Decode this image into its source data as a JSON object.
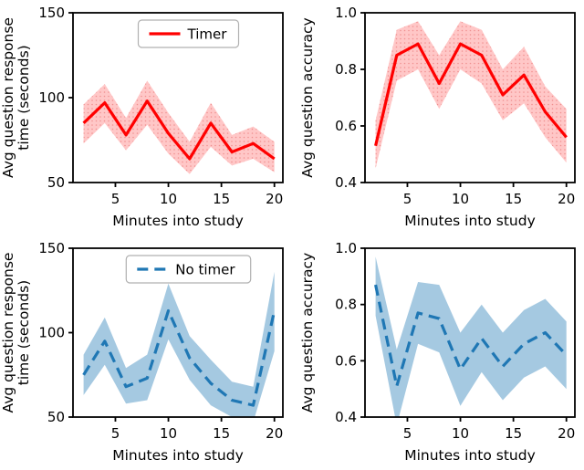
{
  "figure": {
    "background": "#ffffff",
    "rows": 2,
    "cols": 2,
    "colors": {
      "timer": "#ff0000",
      "no_timer": "#1f77b4"
    }
  },
  "chart_data": [
    {
      "id": "response-time-timer",
      "type": "line",
      "position": "top-left",
      "series_name": "Timer",
      "xlabel": "Minutes into study",
      "ylabel_lines": [
        "Avg question response",
        "time (seconds)"
      ],
      "xlim": [
        1,
        20.8
      ],
      "ylim": [
        50,
        150
      ],
      "xticks": {
        "values": [
          5,
          10,
          15,
          20
        ],
        "labels": [
          "5",
          "10",
          "15",
          "20"
        ]
      },
      "yticks": {
        "values": [
          50,
          100,
          150
        ],
        "labels": [
          "50",
          "100",
          "150"
        ]
      },
      "x": [
        2,
        4,
        6,
        8,
        10,
        12,
        14,
        16,
        18,
        20
      ],
      "y": [
        85,
        97,
        78,
        98,
        79,
        64,
        85,
        68,
        73,
        64
      ],
      "band_lower": [
        73,
        85,
        69,
        84,
        67,
        55,
        71,
        60,
        64,
        56
      ],
      "band_upper": [
        96,
        108,
        88,
        110,
        91,
        74,
        97,
        78,
        83,
        74
      ],
      "color": "#ff0000",
      "band_color": "rgba(255,0,0,0.22)",
      "band_dots": true,
      "dashed": false,
      "legend": {
        "visible": true,
        "label": "Timer"
      }
    },
    {
      "id": "accuracy-timer",
      "type": "line",
      "position": "top-right",
      "series_name": "Timer",
      "xlabel": "Minutes into study",
      "ylabel_lines": [
        "Avg question accuracy"
      ],
      "xlim": [
        1,
        20.8
      ],
      "ylim": [
        0.4,
        1.0
      ],
      "xticks": {
        "values": [
          5,
          10,
          15,
          20
        ],
        "labels": [
          "5",
          "10",
          "15",
          "20"
        ]
      },
      "yticks": {
        "values": [
          0.4,
          0.6,
          0.8,
          1.0
        ],
        "labels": [
          "0.4",
          "0.6",
          "0.8",
          "1.0"
        ]
      },
      "x": [
        2,
        4,
        6,
        8,
        10,
        12,
        14,
        16,
        18,
        20
      ],
      "y": [
        0.53,
        0.85,
        0.89,
        0.75,
        0.89,
        0.85,
        0.71,
        0.78,
        0.65,
        0.56
      ],
      "band_lower": [
        0.45,
        0.76,
        0.8,
        0.66,
        0.8,
        0.75,
        0.62,
        0.68,
        0.56,
        0.47
      ],
      "band_upper": [
        0.62,
        0.94,
        0.97,
        0.85,
        0.97,
        0.94,
        0.8,
        0.88,
        0.74,
        0.66
      ],
      "color": "#ff0000",
      "band_color": "rgba(255,0,0,0.22)",
      "band_dots": true,
      "dashed": false,
      "legend": {
        "visible": false,
        "label": ""
      }
    },
    {
      "id": "response-time-no-timer",
      "type": "line",
      "position": "bottom-left",
      "series_name": "No timer",
      "xlabel": "Minutes into study",
      "ylabel_lines": [
        "Avg question response",
        "time (seconds)"
      ],
      "xlim": [
        1,
        20.8
      ],
      "ylim": [
        50,
        150
      ],
      "xticks": {
        "values": [
          5,
          10,
          15,
          20
        ],
        "labels": [
          "5",
          "10",
          "15",
          "20"
        ]
      },
      "yticks": {
        "values": [
          50,
          100,
          150
        ],
        "labels": [
          "50",
          "100",
          "150"
        ]
      },
      "x": [
        2,
        4,
        6,
        8,
        10,
        12,
        14,
        16,
        18,
        20
      ],
      "y": [
        75,
        95,
        68,
        73,
        113,
        85,
        70,
        60,
        57,
        113
      ],
      "band_lower": [
        63,
        81,
        58,
        60,
        96,
        72,
        57,
        50,
        47,
        89
      ],
      "band_upper": [
        87,
        109,
        79,
        87,
        129,
        98,
        84,
        71,
        68,
        136
      ],
      "color": "#1f77b4",
      "band_color": "rgba(31,119,180,0.4)",
      "band_dots": false,
      "dashed": true,
      "legend": {
        "visible": true,
        "label": "No timer"
      }
    },
    {
      "id": "accuracy-no-timer",
      "type": "line",
      "position": "bottom-right",
      "series_name": "No timer",
      "xlabel": "Minutes into study",
      "ylabel_lines": [
        "Avg question accuracy"
      ],
      "xlim": [
        1,
        20.8
      ],
      "ylim": [
        0.4,
        1.0
      ],
      "xticks": {
        "values": [
          5,
          10,
          15,
          20
        ],
        "labels": [
          "5",
          "10",
          "15",
          "20"
        ]
      },
      "yticks": {
        "values": [
          0.4,
          0.6,
          0.8,
          1.0
        ],
        "labels": [
          "0.4",
          "0.6",
          "0.8",
          "1.0"
        ]
      },
      "x": [
        2,
        4,
        6,
        8,
        10,
        12,
        14,
        16,
        18,
        20
      ],
      "y": [
        0.87,
        0.51,
        0.77,
        0.75,
        0.57,
        0.68,
        0.58,
        0.66,
        0.7,
        0.62
      ],
      "band_lower": [
        0.76,
        0.37,
        0.66,
        0.63,
        0.44,
        0.56,
        0.46,
        0.54,
        0.58,
        0.5
      ],
      "band_upper": [
        0.97,
        0.64,
        0.88,
        0.87,
        0.7,
        0.8,
        0.7,
        0.78,
        0.82,
        0.74
      ],
      "color": "#1f77b4",
      "band_color": "rgba(31,119,180,0.4)",
      "band_dots": false,
      "dashed": true,
      "legend": {
        "visible": false,
        "label": ""
      }
    }
  ]
}
